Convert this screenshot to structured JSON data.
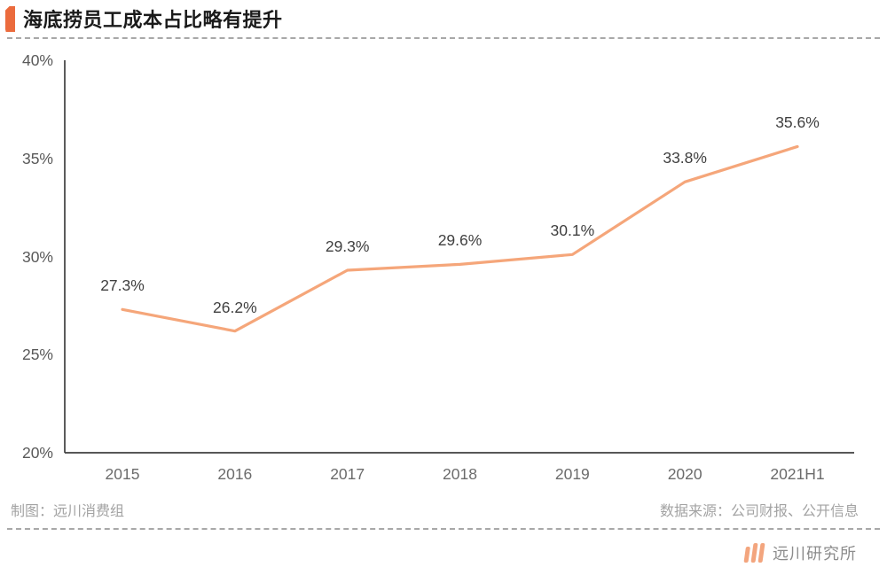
{
  "header": {
    "title": "海底捞员工成本占比略有提升"
  },
  "footer": {
    "left": "制图：远川消费组",
    "right": "数据来源：公司财报、公开信息"
  },
  "brand": {
    "name": "远川研究所"
  },
  "colors": {
    "accent": "#EB6B3D",
    "line": "#F5A67A",
    "axis": "#3f3f3f",
    "ytick_label": "#595959",
    "xtick_label": "#6b6b6b",
    "data_label": "#3f3f3f",
    "footer_text": "#a3a3a3"
  },
  "chart_data": {
    "type": "line",
    "title": "海底捞员工成本占比略有提升",
    "categories": [
      "2015",
      "2016",
      "2017",
      "2018",
      "2019",
      "2020",
      "2021H1"
    ],
    "values": [
      27.3,
      26.2,
      29.3,
      29.6,
      30.1,
      33.8,
      35.6
    ],
    "point_labels": [
      "27.3%",
      "26.2%",
      "29.3%",
      "29.6%",
      "30.1%",
      "33.8%",
      "35.6%"
    ],
    "xlabel": "",
    "ylabel": "",
    "ylim": [
      20,
      40
    ],
    "yticks": [
      {
        "value": 40,
        "label": "40%"
      },
      {
        "value": 35,
        "label": "35%"
      },
      {
        "value": 30,
        "label": "30%"
      },
      {
        "value": 25,
        "label": "25%"
      },
      {
        "value": 20,
        "label": "20%"
      }
    ],
    "grid": false,
    "legend": false
  }
}
